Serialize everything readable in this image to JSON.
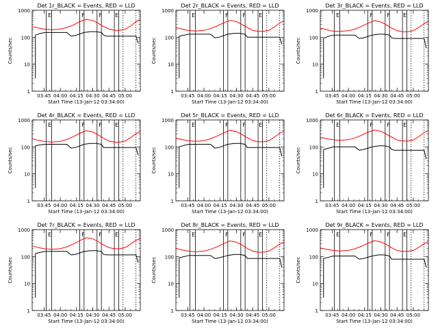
{
  "shared": {
    "ylabel": "Counts/sec",
    "xlabel": "Start Time (13-Jan-12 03:34:00)",
    "xtick_labels": [
      "03:45",
      "04:00",
      "04:15",
      "04:30",
      "04:45",
      "05:00"
    ],
    "ytick_labels": [
      "1",
      "10",
      "100",
      "1000"
    ],
    "marker_labels": [
      "E",
      "F",
      "F",
      "E"
    ],
    "colors": {
      "events": "#000000",
      "lld": "#ff0000"
    }
  },
  "chart_data": [
    {
      "type": "line",
      "title": "Det 1r_BLACK = Events, RED = LLD",
      "xlim": [
        "03:34",
        "05:14"
      ],
      "ylim": [
        1,
        1000
      ],
      "yscale": "log",
      "series": [
        {
          "name": "Events",
          "color": "#000000",
          "x": [
            "03:37",
            "03:42",
            "03:46",
            "03:50",
            "04:00",
            "04:06",
            "04:10",
            "04:14",
            "04:22",
            "04:28",
            "04:33",
            "04:38",
            "04:40",
            "04:43",
            "04:48",
            "04:52",
            "04:58",
            "05:02",
            "05:06",
            "05:10",
            "05:12"
          ],
          "y": [
            120,
            140,
            150,
            150,
            150,
            150,
            110,
            115,
            150,
            160,
            160,
            150,
            120,
            110,
            110,
            110,
            110,
            110,
            110,
            110,
            60
          ]
        },
        {
          "name": "LLD",
          "color": "#ff0000",
          "x": [
            "03:34",
            "03:40",
            "03:45",
            "03:52",
            "04:00",
            "04:06",
            "04:12",
            "04:18",
            "04:24",
            "04:30",
            "04:35",
            "04:40",
            "04:45",
            "04:50",
            "04:55",
            "05:00",
            "05:05",
            "05:10",
            "05:14"
          ],
          "y": [
            250,
            220,
            200,
            190,
            200,
            230,
            280,
            380,
            460,
            420,
            330,
            250,
            200,
            180,
            180,
            200,
            260,
            380,
            450
          ]
        }
      ]
    },
    {
      "type": "line",
      "title": "Det 2r_BLACK = Events, RED = LLD",
      "xlim": [
        "03:34",
        "05:14"
      ],
      "ylim": [
        1,
        1000
      ],
      "yscale": "log",
      "series": [
        {
          "name": "Events",
          "color": "#000000",
          "x": [
            "03:37",
            "03:42",
            "03:46",
            "03:50",
            "04:00",
            "04:06",
            "04:10",
            "04:14",
            "04:22",
            "04:28",
            "04:33",
            "04:38",
            "04:40",
            "04:43",
            "04:48",
            "04:52",
            "04:58",
            "05:02",
            "05:06",
            "05:10",
            "05:12"
          ],
          "y": [
            110,
            120,
            130,
            130,
            130,
            130,
            95,
            100,
            130,
            140,
            140,
            130,
            100,
            100,
            100,
            100,
            100,
            100,
            100,
            100,
            55
          ]
        },
        {
          "name": "LLD",
          "color": "#ff0000",
          "x": [
            "03:34",
            "03:40",
            "03:45",
            "03:52",
            "04:00",
            "04:06",
            "04:12",
            "04:18",
            "04:24",
            "04:30",
            "04:35",
            "04:40",
            "04:45",
            "04:50",
            "04:55",
            "05:00",
            "05:05",
            "05:10",
            "05:14"
          ],
          "y": [
            230,
            200,
            180,
            170,
            180,
            210,
            260,
            340,
            420,
            380,
            300,
            230,
            180,
            165,
            165,
            180,
            240,
            340,
            400
          ]
        }
      ]
    },
    {
      "type": "line",
      "title": "Det 3r_BLACK = Events, RED = LLD",
      "xlim": [
        "03:34",
        "05:14"
      ],
      "ylim": [
        1,
        1000
      ],
      "yscale": "log",
      "series": [
        {
          "name": "Events",
          "color": "#000000",
          "x": [
            "03:37",
            "03:42",
            "03:46",
            "03:50",
            "04:00",
            "04:06",
            "04:10",
            "04:14",
            "04:22",
            "04:28",
            "04:33",
            "04:38",
            "04:40",
            "04:43",
            "04:48",
            "04:52",
            "04:58",
            "05:02",
            "05:06",
            "05:10",
            "05:12"
          ],
          "y": [
            90,
            110,
            120,
            120,
            120,
            120,
            90,
            95,
            120,
            130,
            130,
            120,
            95,
            90,
            90,
            90,
            90,
            90,
            90,
            90,
            40
          ]
        },
        {
          "name": "LLD",
          "color": "#ff0000",
          "x": [
            "03:34",
            "03:40",
            "03:45",
            "03:52",
            "04:00",
            "04:06",
            "04:12",
            "04:18",
            "04:24",
            "04:30",
            "04:35",
            "04:40",
            "04:45",
            "04:50",
            "04:55",
            "05:00",
            "05:05",
            "05:10",
            "05:14"
          ],
          "y": [
            220,
            190,
            170,
            165,
            175,
            200,
            250,
            330,
            410,
            370,
            290,
            220,
            175,
            160,
            160,
            175,
            230,
            320,
            380
          ]
        }
      ]
    },
    {
      "type": "line",
      "title": "Det 4r_BLACK = Events, RED = LLD",
      "xlim": [
        "03:34",
        "05:14"
      ],
      "ylim": [
        1,
        1000
      ],
      "yscale": "log",
      "series": [
        {
          "name": "Events",
          "color": "#000000",
          "x": [
            "03:37",
            "03:42",
            "03:46",
            "03:50",
            "04:00",
            "04:06",
            "04:10",
            "04:14",
            "04:22",
            "04:28",
            "04:33",
            "04:38",
            "04:40",
            "04:43",
            "04:48",
            "04:52",
            "04:58",
            "05:02",
            "05:06",
            "05:10",
            "05:12"
          ],
          "y": [
            110,
            120,
            125,
            125,
            125,
            125,
            90,
            95,
            125,
            135,
            135,
            125,
            95,
            95,
            95,
            95,
            95,
            95,
            95,
            95,
            50
          ]
        },
        {
          "name": "LLD",
          "color": "#ff0000",
          "x": [
            "03:34",
            "03:40",
            "03:45",
            "03:52",
            "04:00",
            "04:06",
            "04:12",
            "04:18",
            "04:24",
            "04:30",
            "04:35",
            "04:40",
            "04:45",
            "04:50",
            "04:55",
            "05:00",
            "05:05",
            "05:10",
            "05:14"
          ],
          "y": [
            200,
            175,
            160,
            150,
            160,
            190,
            240,
            320,
            400,
            360,
            280,
            210,
            165,
            150,
            150,
            165,
            220,
            310,
            370
          ]
        }
      ]
    },
    {
      "type": "line",
      "title": "Det 5r_BLACK = Events, RED = LLD",
      "xlim": [
        "03:34",
        "05:14"
      ],
      "ylim": [
        1,
        1000
      ],
      "yscale": "log",
      "series": [
        {
          "name": "Events",
          "color": "#000000",
          "x": [
            "03:37",
            "03:42",
            "03:46",
            "03:50",
            "04:00",
            "04:06",
            "04:10",
            "04:14",
            "04:22",
            "04:28",
            "04:33",
            "04:38",
            "04:40",
            "04:43",
            "04:48",
            "04:52",
            "04:58",
            "05:02",
            "05:06",
            "05:10",
            "05:12"
          ],
          "y": [
            100,
            115,
            125,
            125,
            125,
            125,
            90,
            95,
            125,
            135,
            135,
            125,
            95,
            95,
            95,
            95,
            95,
            95,
            95,
            95,
            45
          ]
        },
        {
          "name": "LLD",
          "color": "#ff0000",
          "x": [
            "03:34",
            "03:40",
            "03:45",
            "03:52",
            "04:00",
            "04:06",
            "04:12",
            "04:18",
            "04:24",
            "04:30",
            "04:35",
            "04:40",
            "04:45",
            "04:50",
            "04:55",
            "05:00",
            "05:05",
            "05:10",
            "05:14"
          ],
          "y": [
            210,
            185,
            170,
            160,
            170,
            200,
            250,
            330,
            410,
            370,
            290,
            220,
            170,
            155,
            155,
            170,
            230,
            320,
            390
          ]
        }
      ]
    },
    {
      "type": "line",
      "title": "Det 6r_BLACK = Events, RED = LLD",
      "xlim": [
        "03:34",
        "05:14"
      ],
      "ylim": [
        1,
        1000
      ],
      "yscale": "log",
      "series": [
        {
          "name": "Events",
          "color": "#000000",
          "x": [
            "03:37",
            "03:42",
            "03:46",
            "03:50",
            "04:00",
            "04:06",
            "04:10",
            "04:14",
            "04:22",
            "04:28",
            "04:33",
            "04:38",
            "04:40",
            "04:43",
            "04:48",
            "04:52",
            "04:58",
            "05:02",
            "05:06",
            "05:10",
            "05:12"
          ],
          "y": [
            80,
            90,
            100,
            100,
            100,
            100,
            75,
            80,
            100,
            110,
            110,
            100,
            80,
            75,
            75,
            75,
            75,
            75,
            75,
            75,
            35
          ]
        },
        {
          "name": "LLD",
          "color": "#ff0000",
          "x": [
            "03:34",
            "03:40",
            "03:45",
            "03:52",
            "04:00",
            "04:06",
            "04:12",
            "04:18",
            "04:24",
            "04:30",
            "04:35",
            "04:40",
            "04:45",
            "04:50",
            "04:55",
            "05:00",
            "05:05",
            "05:10",
            "05:14"
          ],
          "y": [
            230,
            200,
            185,
            175,
            185,
            215,
            270,
            350,
            420,
            380,
            300,
            230,
            180,
            165,
            165,
            180,
            240,
            340,
            400
          ]
        }
      ]
    },
    {
      "type": "line",
      "title": "Det 7r_BLACK = Events, RED = LLD",
      "xlim": [
        "03:34",
        "05:14"
      ],
      "ylim": [
        1,
        1000
      ],
      "yscale": "log",
      "series": [
        {
          "name": "Events",
          "color": "#000000",
          "x": [
            "03:37",
            "03:42",
            "03:46",
            "03:50",
            "04:00",
            "04:06",
            "04:10",
            "04:14",
            "04:22",
            "04:28",
            "04:33",
            "04:38",
            "04:40",
            "04:43",
            "04:48",
            "04:52",
            "04:58",
            "05:02",
            "05:06",
            "05:10",
            "05:12"
          ],
          "y": [
            130,
            145,
            155,
            155,
            155,
            155,
            115,
            120,
            155,
            165,
            165,
            155,
            120,
            115,
            115,
            115,
            115,
            115,
            115,
            115,
            60
          ]
        },
        {
          "name": "LLD",
          "color": "#ff0000",
          "x": [
            "03:34",
            "03:40",
            "03:45",
            "03:52",
            "04:00",
            "04:06",
            "04:12",
            "04:18",
            "04:24",
            "04:30",
            "04:35",
            "04:40",
            "04:45",
            "04:50",
            "04:55",
            "05:00",
            "05:05",
            "05:10",
            "05:14"
          ],
          "y": [
            250,
            215,
            195,
            185,
            195,
            230,
            290,
            390,
            500,
            460,
            360,
            270,
            215,
            195,
            195,
            215,
            290,
            400,
            470
          ]
        }
      ]
    },
    {
      "type": "line",
      "title": "Det 8r_BLACK = Events, RED = LLD",
      "xlim": [
        "03:34",
        "05:14"
      ],
      "ylim": [
        1,
        1000
      ],
      "yscale": "log",
      "series": [
        {
          "name": "Events",
          "color": "#000000",
          "x": [
            "03:37",
            "03:42",
            "03:46",
            "03:50",
            "04:00",
            "04:06",
            "04:10",
            "04:14",
            "04:22",
            "04:28",
            "04:33",
            "04:38",
            "04:40",
            "04:43",
            "04:48",
            "04:52",
            "04:58",
            "05:02",
            "05:06",
            "05:10",
            "05:12"
          ],
          "y": [
            90,
            100,
            110,
            110,
            110,
            110,
            85,
            90,
            110,
            120,
            120,
            110,
            85,
            85,
            85,
            85,
            85,
            85,
            85,
            85,
            40
          ]
        },
        {
          "name": "LLD",
          "color": "#ff0000",
          "x": [
            "03:34",
            "03:40",
            "03:45",
            "03:52",
            "04:00",
            "04:06",
            "04:12",
            "04:18",
            "04:24",
            "04:30",
            "04:35",
            "04:40",
            "04:45",
            "04:50",
            "04:55",
            "05:00",
            "05:05",
            "05:10",
            "05:14"
          ],
          "y": [
            200,
            175,
            160,
            150,
            160,
            185,
            230,
            300,
            380,
            340,
            270,
            200,
            160,
            145,
            145,
            160,
            210,
            290,
            350
          ]
        }
      ]
    },
    {
      "type": "line",
      "title": "Det 9r_BLACK = Events, RED = LLD",
      "xlim": [
        "03:34",
        "05:14"
      ],
      "ylim": [
        1,
        1000
      ],
      "yscale": "log",
      "series": [
        {
          "name": "Events",
          "color": "#000000",
          "x": [
            "03:37",
            "03:42",
            "03:46",
            "03:50",
            "04:00",
            "04:06",
            "04:10",
            "04:14",
            "04:22",
            "04:28",
            "04:33",
            "04:38",
            "04:40",
            "04:43",
            "04:48",
            "04:52",
            "04:58",
            "05:02",
            "05:06",
            "05:10",
            "05:12"
          ],
          "y": [
            85,
            95,
            105,
            105,
            105,
            105,
            80,
            85,
            105,
            115,
            115,
            105,
            80,
            80,
            80,
            80,
            80,
            80,
            80,
            80,
            40
          ]
        },
        {
          "name": "LLD",
          "color": "#ff0000",
          "x": [
            "03:34",
            "03:40",
            "03:45",
            "03:52",
            "04:00",
            "04:06",
            "04:12",
            "04:18",
            "04:24",
            "04:30",
            "04:35",
            "04:40",
            "04:45",
            "04:50",
            "04:55",
            "05:00",
            "05:05",
            "05:10",
            "05:14"
          ],
          "y": [
            210,
            185,
            170,
            160,
            170,
            195,
            240,
            310,
            390,
            350,
            280,
            210,
            170,
            155,
            155,
            170,
            220,
            300,
            360
          ]
        }
      ]
    }
  ]
}
